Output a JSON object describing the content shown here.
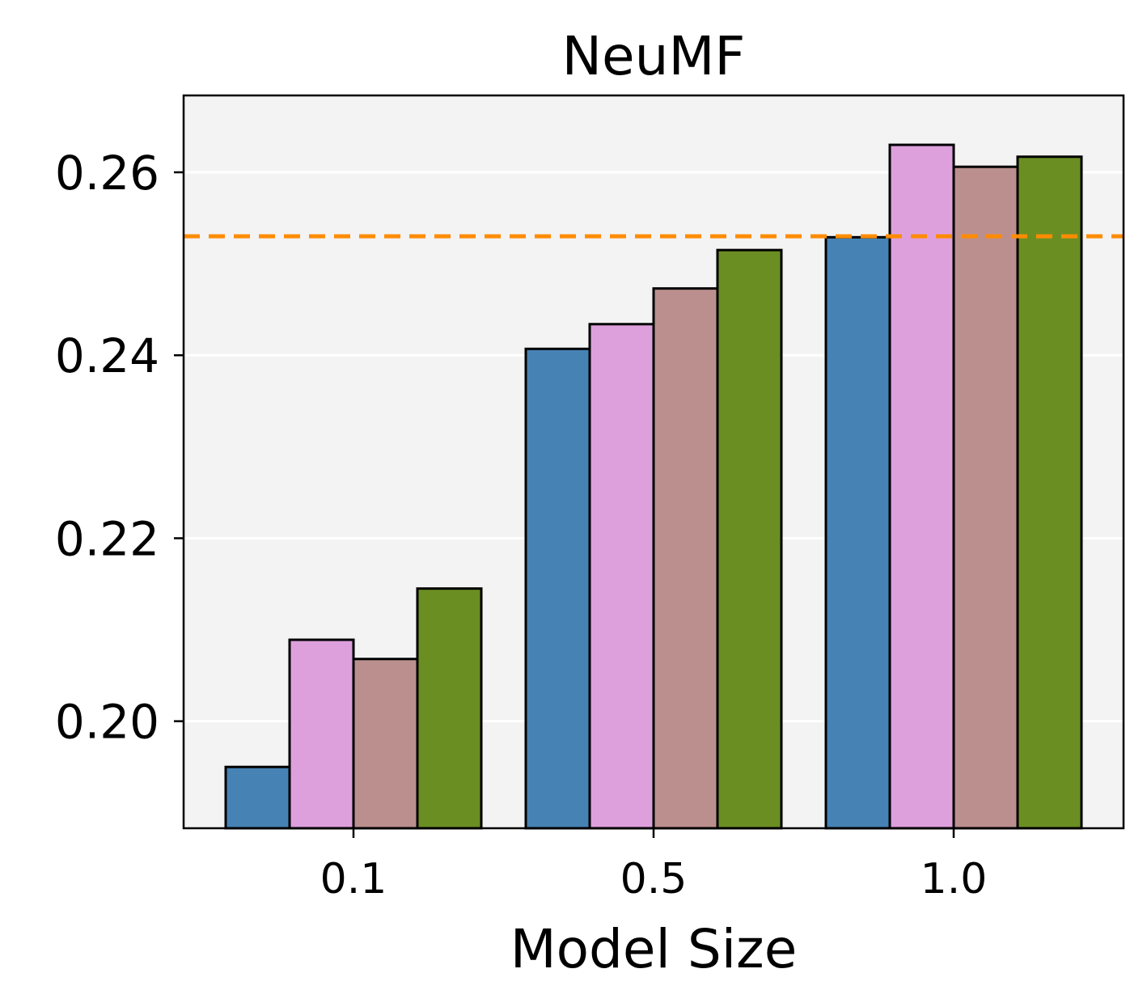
{
  "chart_data": {
    "type": "bar",
    "title": "NeuMF",
    "xlabel": "Model Size",
    "ylabel": "",
    "categories": [
      "0.1",
      "0.5",
      "1.0"
    ],
    "series": [
      {
        "values": [
          0.195,
          0.2407,
          0.2529
        ],
        "color": "#4682b4"
      },
      {
        "values": [
          0.2089,
          0.2434,
          0.263
        ],
        "color": "#dda0dd"
      },
      {
        "values": [
          0.2068,
          0.2473,
          0.2606
        ],
        "color": "#bc8f8f"
      },
      {
        "values": [
          0.2145,
          0.2515,
          0.2617
        ],
        "color": "#6b8e23"
      }
    ],
    "reference_line": {
      "value": 0.253,
      "color": "#ff8c00",
      "style": "dashed"
    },
    "yticks": [
      "0.20",
      "0.22",
      "0.24",
      "0.26"
    ],
    "ytick_values": [
      0.2,
      0.22,
      0.24,
      0.26
    ],
    "ylim": [
      0.1883,
      0.2684
    ],
    "grid": "horizontal",
    "plot_background": "#f3f3f3",
    "bar_edge_color": "#000000"
  }
}
